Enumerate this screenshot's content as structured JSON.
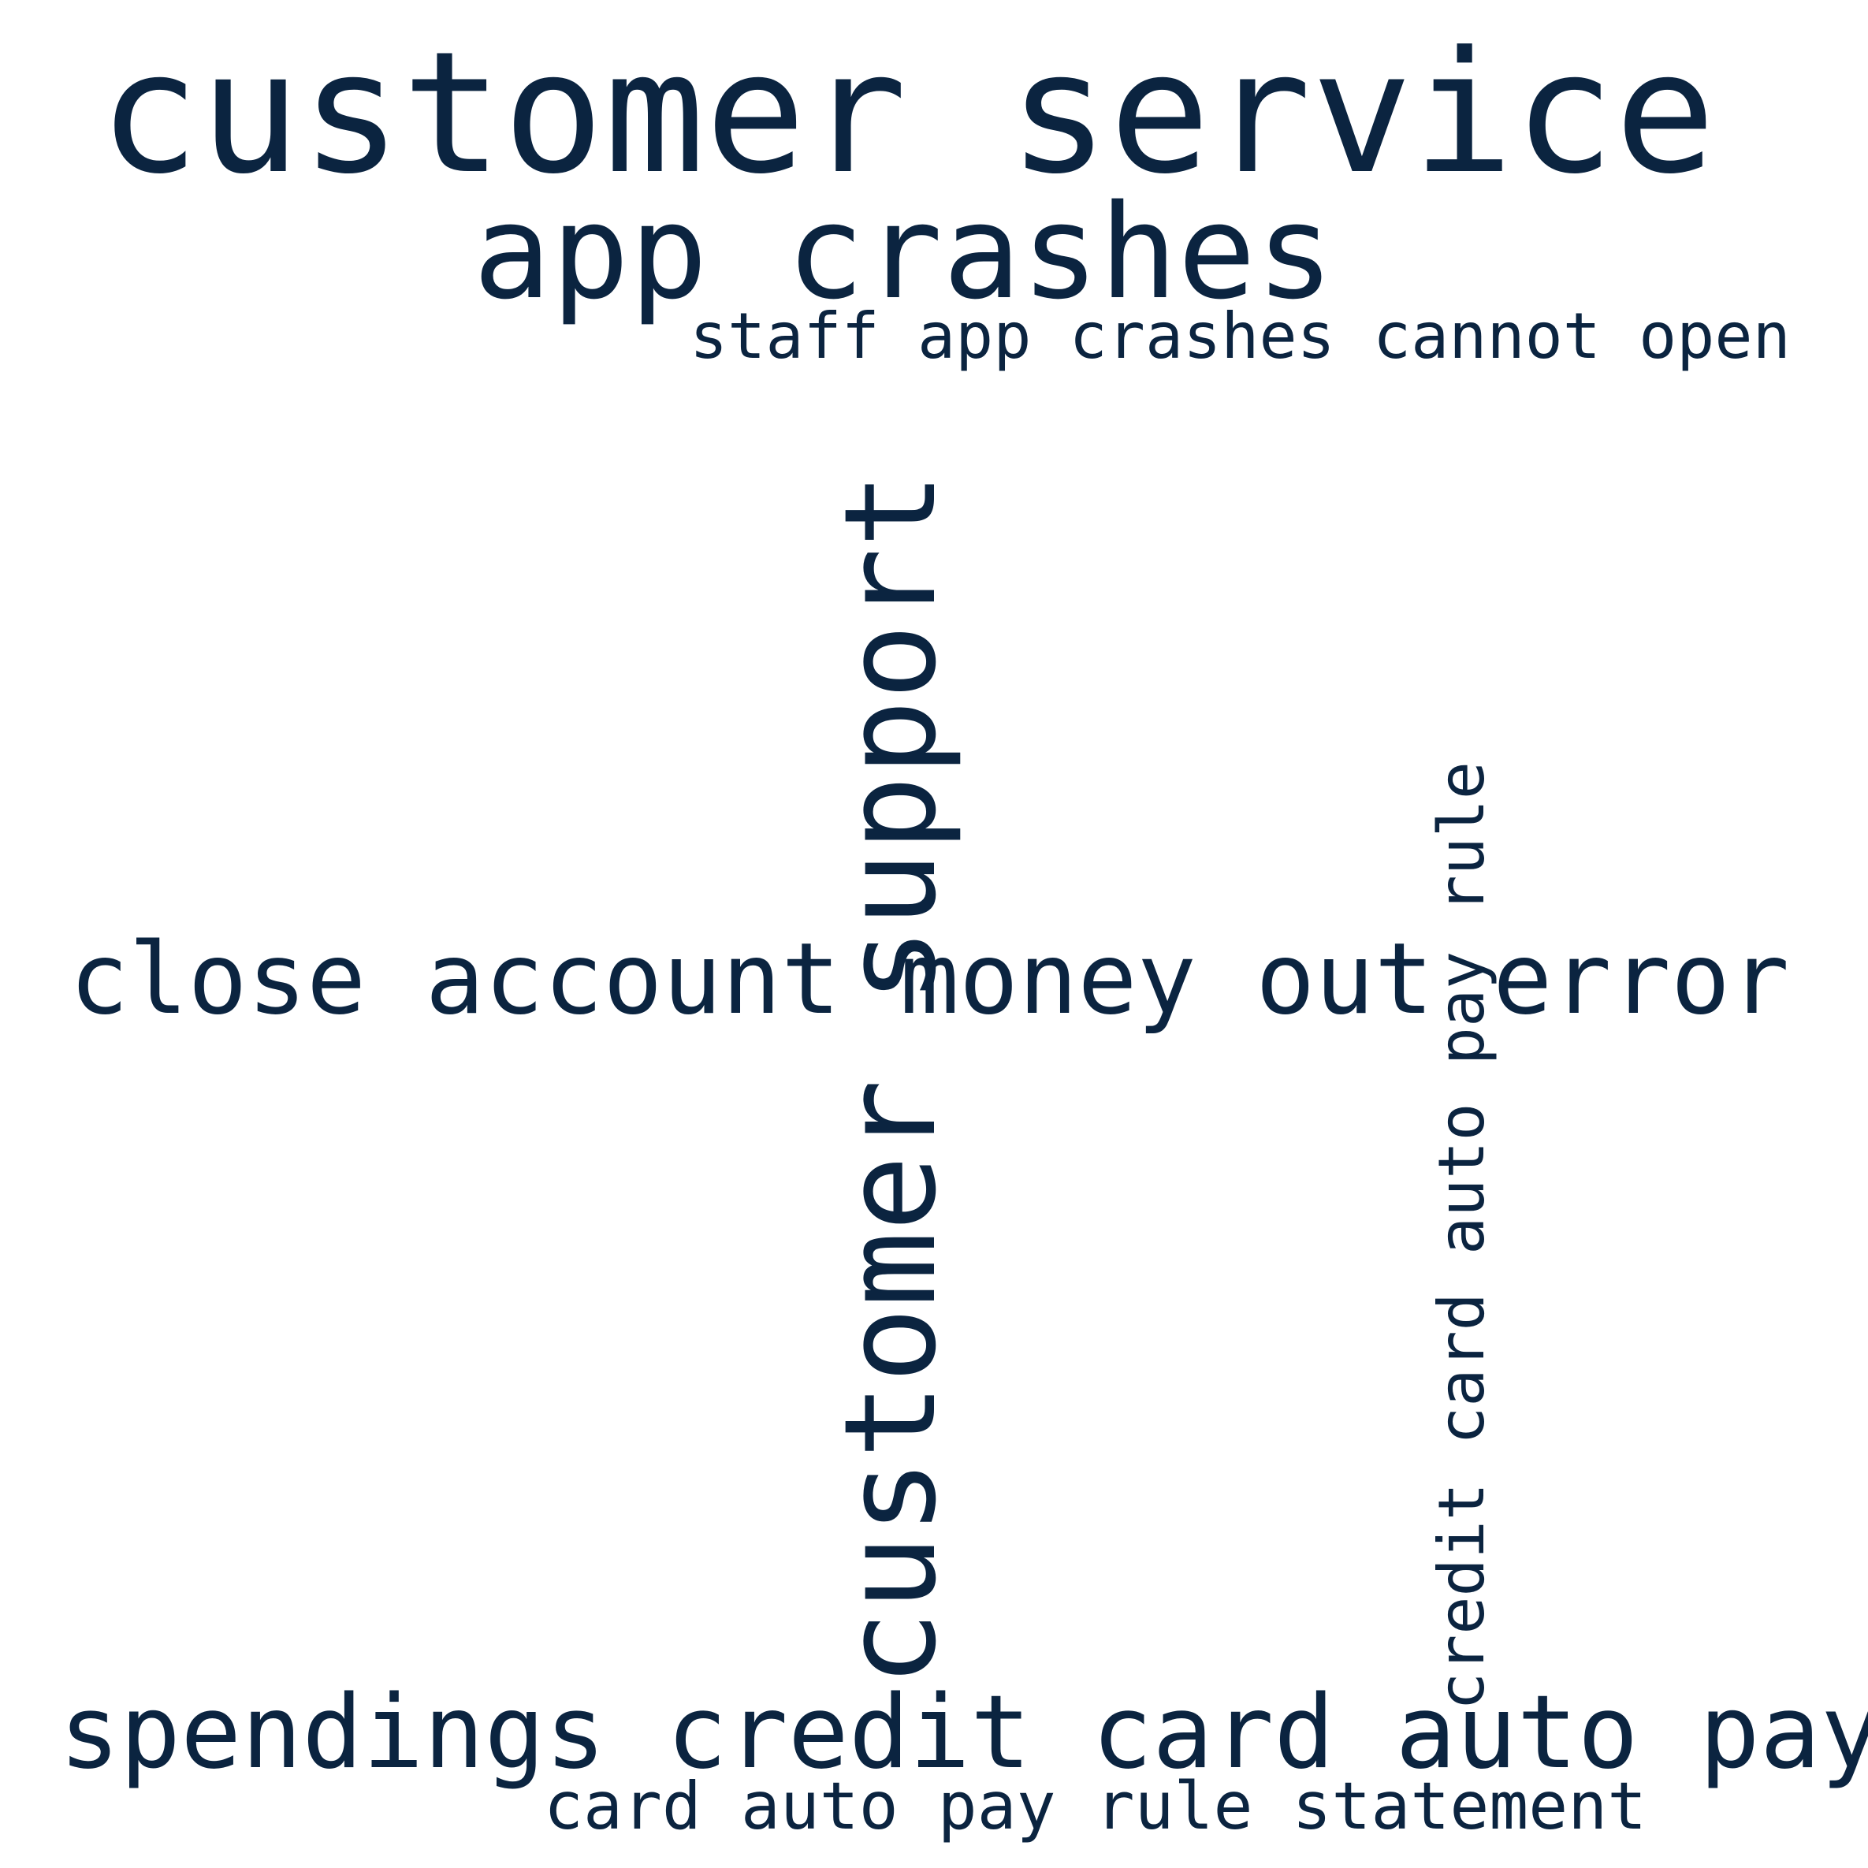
{
  "word_cloud": {
    "text_color": "#0b2440",
    "background_color": "#ffffff",
    "words": [
      {
        "text": "customer service",
        "orientation": "horizontal"
      },
      {
        "text": "app crashes",
        "orientation": "horizontal"
      },
      {
        "text": "staff app crashes cannot open",
        "orientation": "horizontal"
      },
      {
        "text": "close account money out error",
        "orientation": "horizontal"
      },
      {
        "text": "spendings credit card auto pay",
        "orientation": "horizontal"
      },
      {
        "text": "card auto pay rule statement",
        "orientation": "horizontal"
      },
      {
        "text": "customer support",
        "orientation": "vertical"
      },
      {
        "text": "credit card auto pay rule",
        "orientation": "vertical"
      }
    ]
  }
}
